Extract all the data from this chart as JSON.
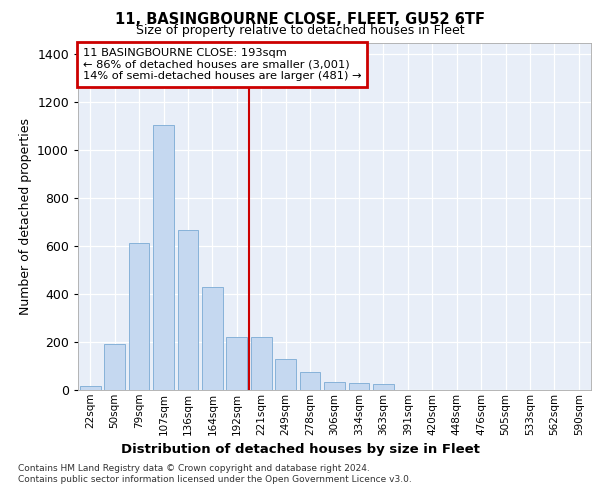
{
  "title_line1": "11, BASINGBOURNE CLOSE, FLEET, GU52 6TF",
  "title_line2": "Size of property relative to detached houses in Fleet",
  "xlabel": "Distribution of detached houses by size in Fleet",
  "ylabel": "Number of detached properties",
  "categories": [
    "22sqm",
    "50sqm",
    "79sqm",
    "107sqm",
    "136sqm",
    "164sqm",
    "192sqm",
    "221sqm",
    "249sqm",
    "278sqm",
    "306sqm",
    "334sqm",
    "363sqm",
    "391sqm",
    "420sqm",
    "448sqm",
    "476sqm",
    "505sqm",
    "533sqm",
    "562sqm",
    "590sqm"
  ],
  "values": [
    15,
    193,
    613,
    1107,
    668,
    430,
    220,
    220,
    130,
    75,
    32,
    30,
    25,
    0,
    0,
    0,
    0,
    0,
    0,
    0,
    0
  ],
  "bar_color": "#c5d8f0",
  "bar_edge_color": "#7aaad4",
  "bg_color": "#e8eef8",
  "grid_color": "#ffffff",
  "vline_index": 6.5,
  "vline_color": "#cc0000",
  "annotation_title": "11 BASINGBOURNE CLOSE: 193sqm",
  "annotation_line2": "← 86% of detached houses are smaller (3,001)",
  "annotation_line3": "14% of semi-detached houses are larger (481) →",
  "ann_box_edge": "#cc0000",
  "footer_line1": "Contains HM Land Registry data © Crown copyright and database right 2024.",
  "footer_line2": "Contains public sector information licensed under the Open Government Licence v3.0.",
  "ylim_max": 1450,
  "yticks": [
    0,
    200,
    400,
    600,
    800,
    1000,
    1200,
    1400
  ]
}
